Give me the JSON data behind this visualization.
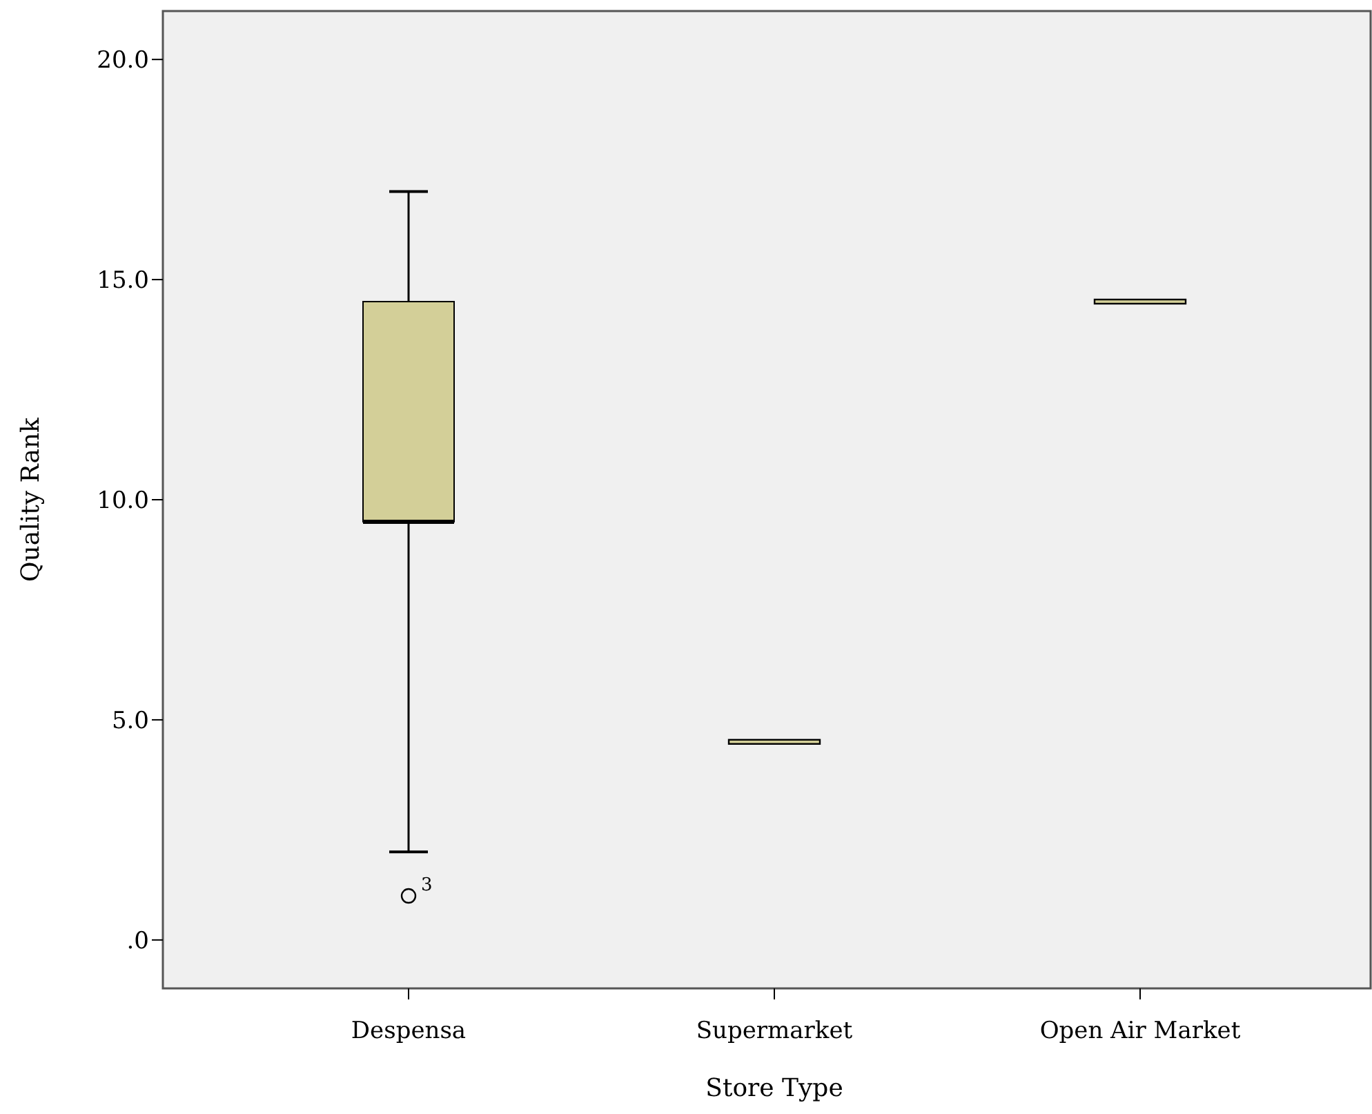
{
  "chart_data": {
    "type": "box",
    "xlabel": "Store Type",
    "ylabel": "Quality Rank",
    "categories": [
      "Despensa",
      "Supermarket",
      "Open Air Market"
    ],
    "color": "#d3cf98",
    "boxes": [
      {
        "low": 2,
        "q1": 9.5,
        "median": 9.5,
        "q3": 14.5,
        "high": 17,
        "outliers": [
          1
        ]
      },
      {
        "low": 4.5,
        "q1": 4.5,
        "median": 4.5,
        "q3": 4.5,
        "high": 4.5
      },
      {
        "low": 14.5,
        "q1": 14.5,
        "median": 14.5,
        "q3": 14.5,
        "high": 14.5
      }
    ],
    "ylim": [
      -1.1,
      21.1
    ],
    "yticks": [
      {
        "value": 0,
        "label": ".0"
      },
      {
        "value": 5,
        "label": "5.0"
      },
      {
        "value": 10,
        "label": "10.0"
      },
      {
        "value": 15,
        "label": "15.0"
      },
      {
        "value": 20,
        "label": "20.0"
      }
    ],
    "annotations": [
      "3"
    ]
  }
}
